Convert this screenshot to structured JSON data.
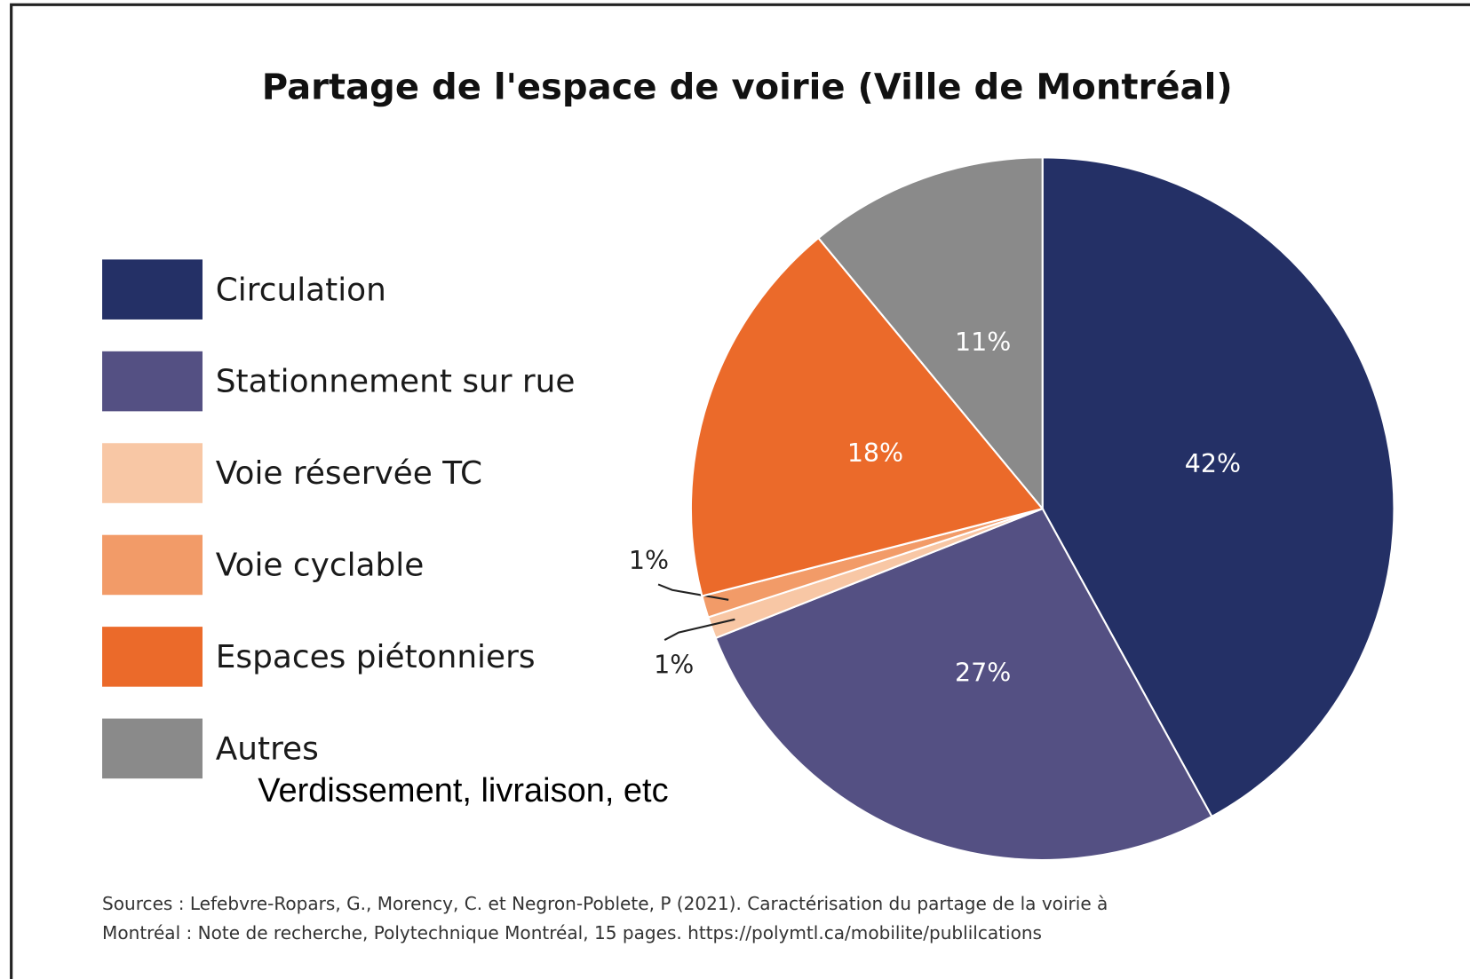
{
  "chart_data": {
    "type": "pie",
    "title": "Partage de l'espace de voirie (Ville de Montréal)",
    "categories": [
      "Circulation",
      "Stationnement sur rue",
      "Voie réservée TC",
      "Voie cyclable",
      "Espaces piétonniers",
      "Autres"
    ],
    "values": [
      42,
      27,
      1,
      1,
      18,
      11
    ],
    "value_labels": [
      "42%",
      "27%",
      "1%",
      "1%",
      "18%",
      "11%"
    ],
    "colors": [
      "#243066",
      "#545083",
      "#f8c7a5",
      "#f29b68",
      "#eb6a2a",
      "#8a8a8a"
    ],
    "annotation": "Verdissement, livraison, etc",
    "source": [
      "Sources : Lefebvre-Ropars, G., Morency, C. et Negron-Poblete, P (2021). Caractérisation du partage de la voirie à",
      "Montréal : Note de recherche, Polytechnique Montréal, 15 pages. https://polymtl.ca/mobilite/publilcations"
    ]
  }
}
